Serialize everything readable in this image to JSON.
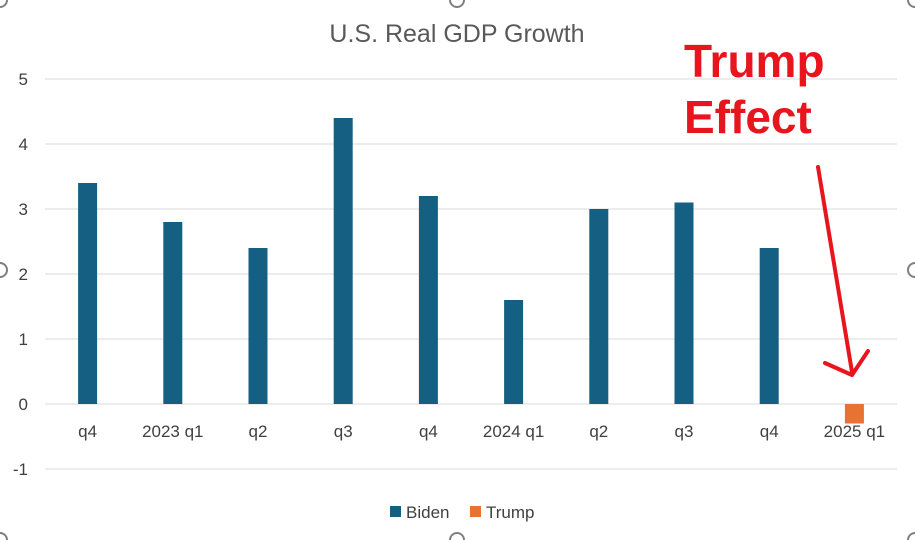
{
  "chart_data": {
    "type": "bar",
    "title": "U.S. Real GDP Growth",
    "xlabel": "",
    "ylabel": "",
    "categories": [
      "q4",
      "2023 q1",
      "q2",
      "q3",
      "q4",
      "2024 q1",
      "q2",
      "q3",
      "q4",
      "2025 q1"
    ],
    "series": [
      {
        "name": "Biden",
        "color": "#156082",
        "values": [
          3.4,
          2.8,
          2.4,
          4.4,
          3.2,
          1.6,
          3.0,
          3.1,
          2.4,
          null
        ]
      },
      {
        "name": "Trump",
        "color": "#e97132",
        "values": [
          null,
          null,
          null,
          null,
          null,
          null,
          null,
          null,
          null,
          -0.3
        ]
      }
    ],
    "ylim": [
      -1,
      5
    ],
    "yticks": [
      "-1",
      "0",
      "1",
      "2",
      "3",
      "4",
      "5"
    ],
    "grid": true,
    "legend_position": "bottom",
    "annotation": {
      "lines": [
        "Trump",
        "Effect"
      ],
      "color": "#e8141e",
      "points_to": "2025 q1"
    }
  }
}
